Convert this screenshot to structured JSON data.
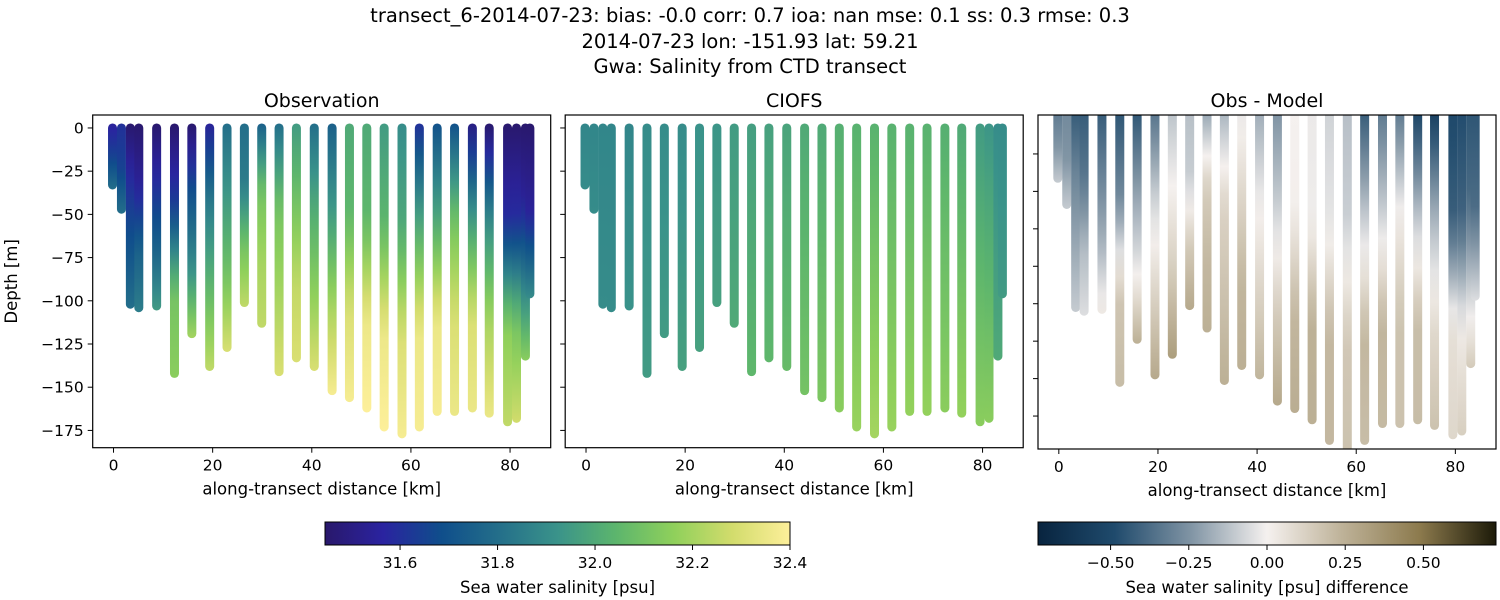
{
  "title": {
    "line1": "transect_6-2014-07-23: bias: -0.0  corr: 0.7  ioa: nan  mse: 0.1  ss: 0.3  rmse: 0.3",
    "line2": "2014-07-23 lon: -151.93 lat: 59.21",
    "line3": "Gwa: Salinity from CTD transect"
  },
  "chart_data": {
    "type": "scatter",
    "panels": [
      {
        "title": "Observation",
        "xlabel": "along-transect distance [km]",
        "ylabel": "Depth [m]",
        "variable": "obs"
      },
      {
        "title": "CIOFS",
        "xlabel": "along-transect distance [km]",
        "ylabel": "",
        "variable": "model"
      },
      {
        "title": "Obs - Model",
        "xlabel": "along-transect distance [km]",
        "ylabel": "",
        "variable": "diff"
      }
    ],
    "xlim": [
      -4.2,
      88.2
    ],
    "ylim": [
      -185,
      7.5
    ],
    "xticks": [
      "0",
      "20",
      "40",
      "60",
      "80"
    ],
    "yticks": [
      "0",
      "−25",
      "−50",
      "−75",
      "−100",
      "−125",
      "−150",
      "−175"
    ],
    "stations": [
      {
        "km": -0.2,
        "max_depth": 33,
        "obs": [
          31.55,
          31.65,
          31.8
        ],
        "model": [
          31.88,
          31.9
        ]
      },
      {
        "km": 1.6,
        "max_depth": 47,
        "obs": [
          31.6,
          31.65,
          31.8
        ],
        "model": [
          31.88,
          31.9
        ]
      },
      {
        "km": 3.4,
        "max_depth": 102,
        "obs": [
          31.45,
          31.6,
          31.7,
          31.8
        ],
        "model": [
          31.88,
          31.9
        ]
      },
      {
        "km": 5.1,
        "max_depth": 104,
        "obs": [
          31.45,
          31.55,
          31.75,
          31.85
        ],
        "model": [
          31.88,
          31.9
        ]
      },
      {
        "km": 8.7,
        "max_depth": 103,
        "obs": [
          31.45,
          31.6,
          31.75,
          31.95
        ],
        "model": [
          31.88,
          31.92
        ]
      },
      {
        "km": 12.3,
        "max_depth": 142,
        "obs": [
          31.45,
          31.65,
          32.1,
          32.15
        ],
        "model": [
          31.9,
          31.95
        ]
      },
      {
        "km": 15.8,
        "max_depth": 119,
        "obs": [
          31.45,
          31.7,
          31.9,
          32.2
        ],
        "model": [
          31.9,
          31.95
        ]
      },
      {
        "km": 19.4,
        "max_depth": 138,
        "obs": [
          31.55,
          31.85,
          32.05,
          32.25
        ],
        "model": [
          31.9,
          31.97
        ]
      },
      {
        "km": 22.9,
        "max_depth": 127,
        "obs": [
          31.8,
          31.95,
          32.1,
          32.3
        ],
        "model": [
          31.92,
          31.97
        ]
      },
      {
        "km": 26.4,
        "max_depth": 101,
        "obs": [
          31.8,
          31.85,
          32.1,
          32.25
        ],
        "model": [
          31.93,
          31.97
        ]
      },
      {
        "km": 29.9,
        "max_depth": 113,
        "obs": [
          31.75,
          32.1,
          32.2,
          32.25
        ],
        "model": [
          31.95,
          32.0
        ]
      },
      {
        "km": 33.4,
        "max_depth": 141,
        "obs": [
          31.8,
          32.1,
          32.2,
          32.3
        ],
        "model": [
          31.96,
          32.05
        ]
      },
      {
        "km": 36.9,
        "max_depth": 133,
        "obs": [
          31.95,
          32.1,
          32.25,
          32.3
        ],
        "model": [
          31.97,
          32.05
        ]
      },
      {
        "km": 40.5,
        "max_depth": 138,
        "obs": [
          31.8,
          32.0,
          32.15,
          32.3
        ],
        "model": [
          31.98,
          32.07
        ]
      },
      {
        "km": 44.1,
        "max_depth": 152,
        "obs": [
          31.75,
          31.95,
          32.2,
          32.38
        ],
        "model": [
          32.0,
          32.1
        ]
      },
      {
        "km": 47.6,
        "max_depth": 156,
        "obs": [
          32.0,
          32.05,
          32.3,
          32.38
        ],
        "model": [
          32.0,
          32.12
        ]
      },
      {
        "km": 51.1,
        "max_depth": 162,
        "obs": [
          32.0,
          32.05,
          32.35,
          32.4
        ],
        "model": [
          32.02,
          32.15
        ]
      },
      {
        "km": 54.6,
        "max_depth": 173,
        "obs": [
          31.95,
          32.05,
          32.35,
          32.4
        ],
        "model": [
          32.03,
          32.18
        ]
      },
      {
        "km": 58.2,
        "max_depth": 177,
        "obs": [
          31.9,
          32.0,
          32.3,
          32.38
        ],
        "model": [
          32.03,
          32.2
        ]
      },
      {
        "km": 61.7,
        "max_depth": 173,
        "obs": [
          31.6,
          32.0,
          32.35,
          32.38
        ],
        "model": [
          32.03,
          32.18
        ]
      },
      {
        "km": 65.3,
        "max_depth": 164,
        "obs": [
          31.7,
          32.0,
          32.35,
          32.38
        ],
        "model": [
          32.03,
          32.17
        ]
      },
      {
        "km": 68.8,
        "max_depth": 164,
        "obs": [
          31.7,
          32.1,
          32.3,
          32.35
        ],
        "model": [
          32.03,
          32.17
        ]
      },
      {
        "km": 72.4,
        "max_depth": 162,
        "obs": [
          31.5,
          31.95,
          32.3,
          32.35
        ],
        "model": [
          32.02,
          32.15
        ]
      },
      {
        "km": 75.8,
        "max_depth": 165,
        "obs": [
          31.45,
          31.9,
          32.2,
          32.35
        ],
        "model": [
          32.0,
          32.17
        ]
      },
      {
        "km": 79.5,
        "max_depth": 170,
        "obs": [
          31.45,
          31.6,
          32.15,
          32.25
        ],
        "model": [
          31.95,
          32.15
        ]
      },
      {
        "km": 81.3,
        "max_depth": 168,
        "obs": [
          31.45,
          31.6,
          32.1,
          32.28
        ],
        "model": [
          31.93,
          32.15
        ]
      },
      {
        "km": 83.1,
        "max_depth": 132,
        "obs": [
          31.45,
          31.55,
          31.85,
          32.15
        ],
        "model": [
          31.9,
          32.0
        ]
      },
      {
        "km": 84.0,
        "max_depth": 96,
        "obs": [
          31.45,
          31.55,
          31.9
        ],
        "model": [
          31.9,
          31.95
        ]
      }
    ],
    "colorbars": [
      {
        "label": "Sea water salinity [psu]",
        "range": [
          31.446,
          32.4
        ],
        "ticks": [
          31.6,
          31.8,
          32.0,
          32.2,
          32.4
        ],
        "tick_labels": [
          "31.6",
          "31.8",
          "32.0",
          "32.2",
          "32.4"
        ],
        "colormap": "haline",
        "colors": [
          "#29186b",
          "#2a23a0",
          "#0f4e8b",
          "#246f8a",
          "#3a938a",
          "#5cb56d",
          "#8fd05b",
          "#d2dc6c",
          "#fdef9a"
        ]
      },
      {
        "label": "Sea water salinity [psu] difference",
        "range": [
          -0.732,
          0.732
        ],
        "ticks": [
          -0.5,
          -0.25,
          0,
          0.25,
          0.5
        ],
        "tick_labels": [
          "−0.50",
          "−0.25",
          "0.00",
          "0.25",
          "0.50"
        ],
        "colormap": "diff",
        "colors": [
          "#08243f",
          "#1f4a6c",
          "#8094a4",
          "#f5f1ef",
          "#bdb197",
          "#8c7a4d",
          "#1c1a08"
        ]
      }
    ]
  }
}
